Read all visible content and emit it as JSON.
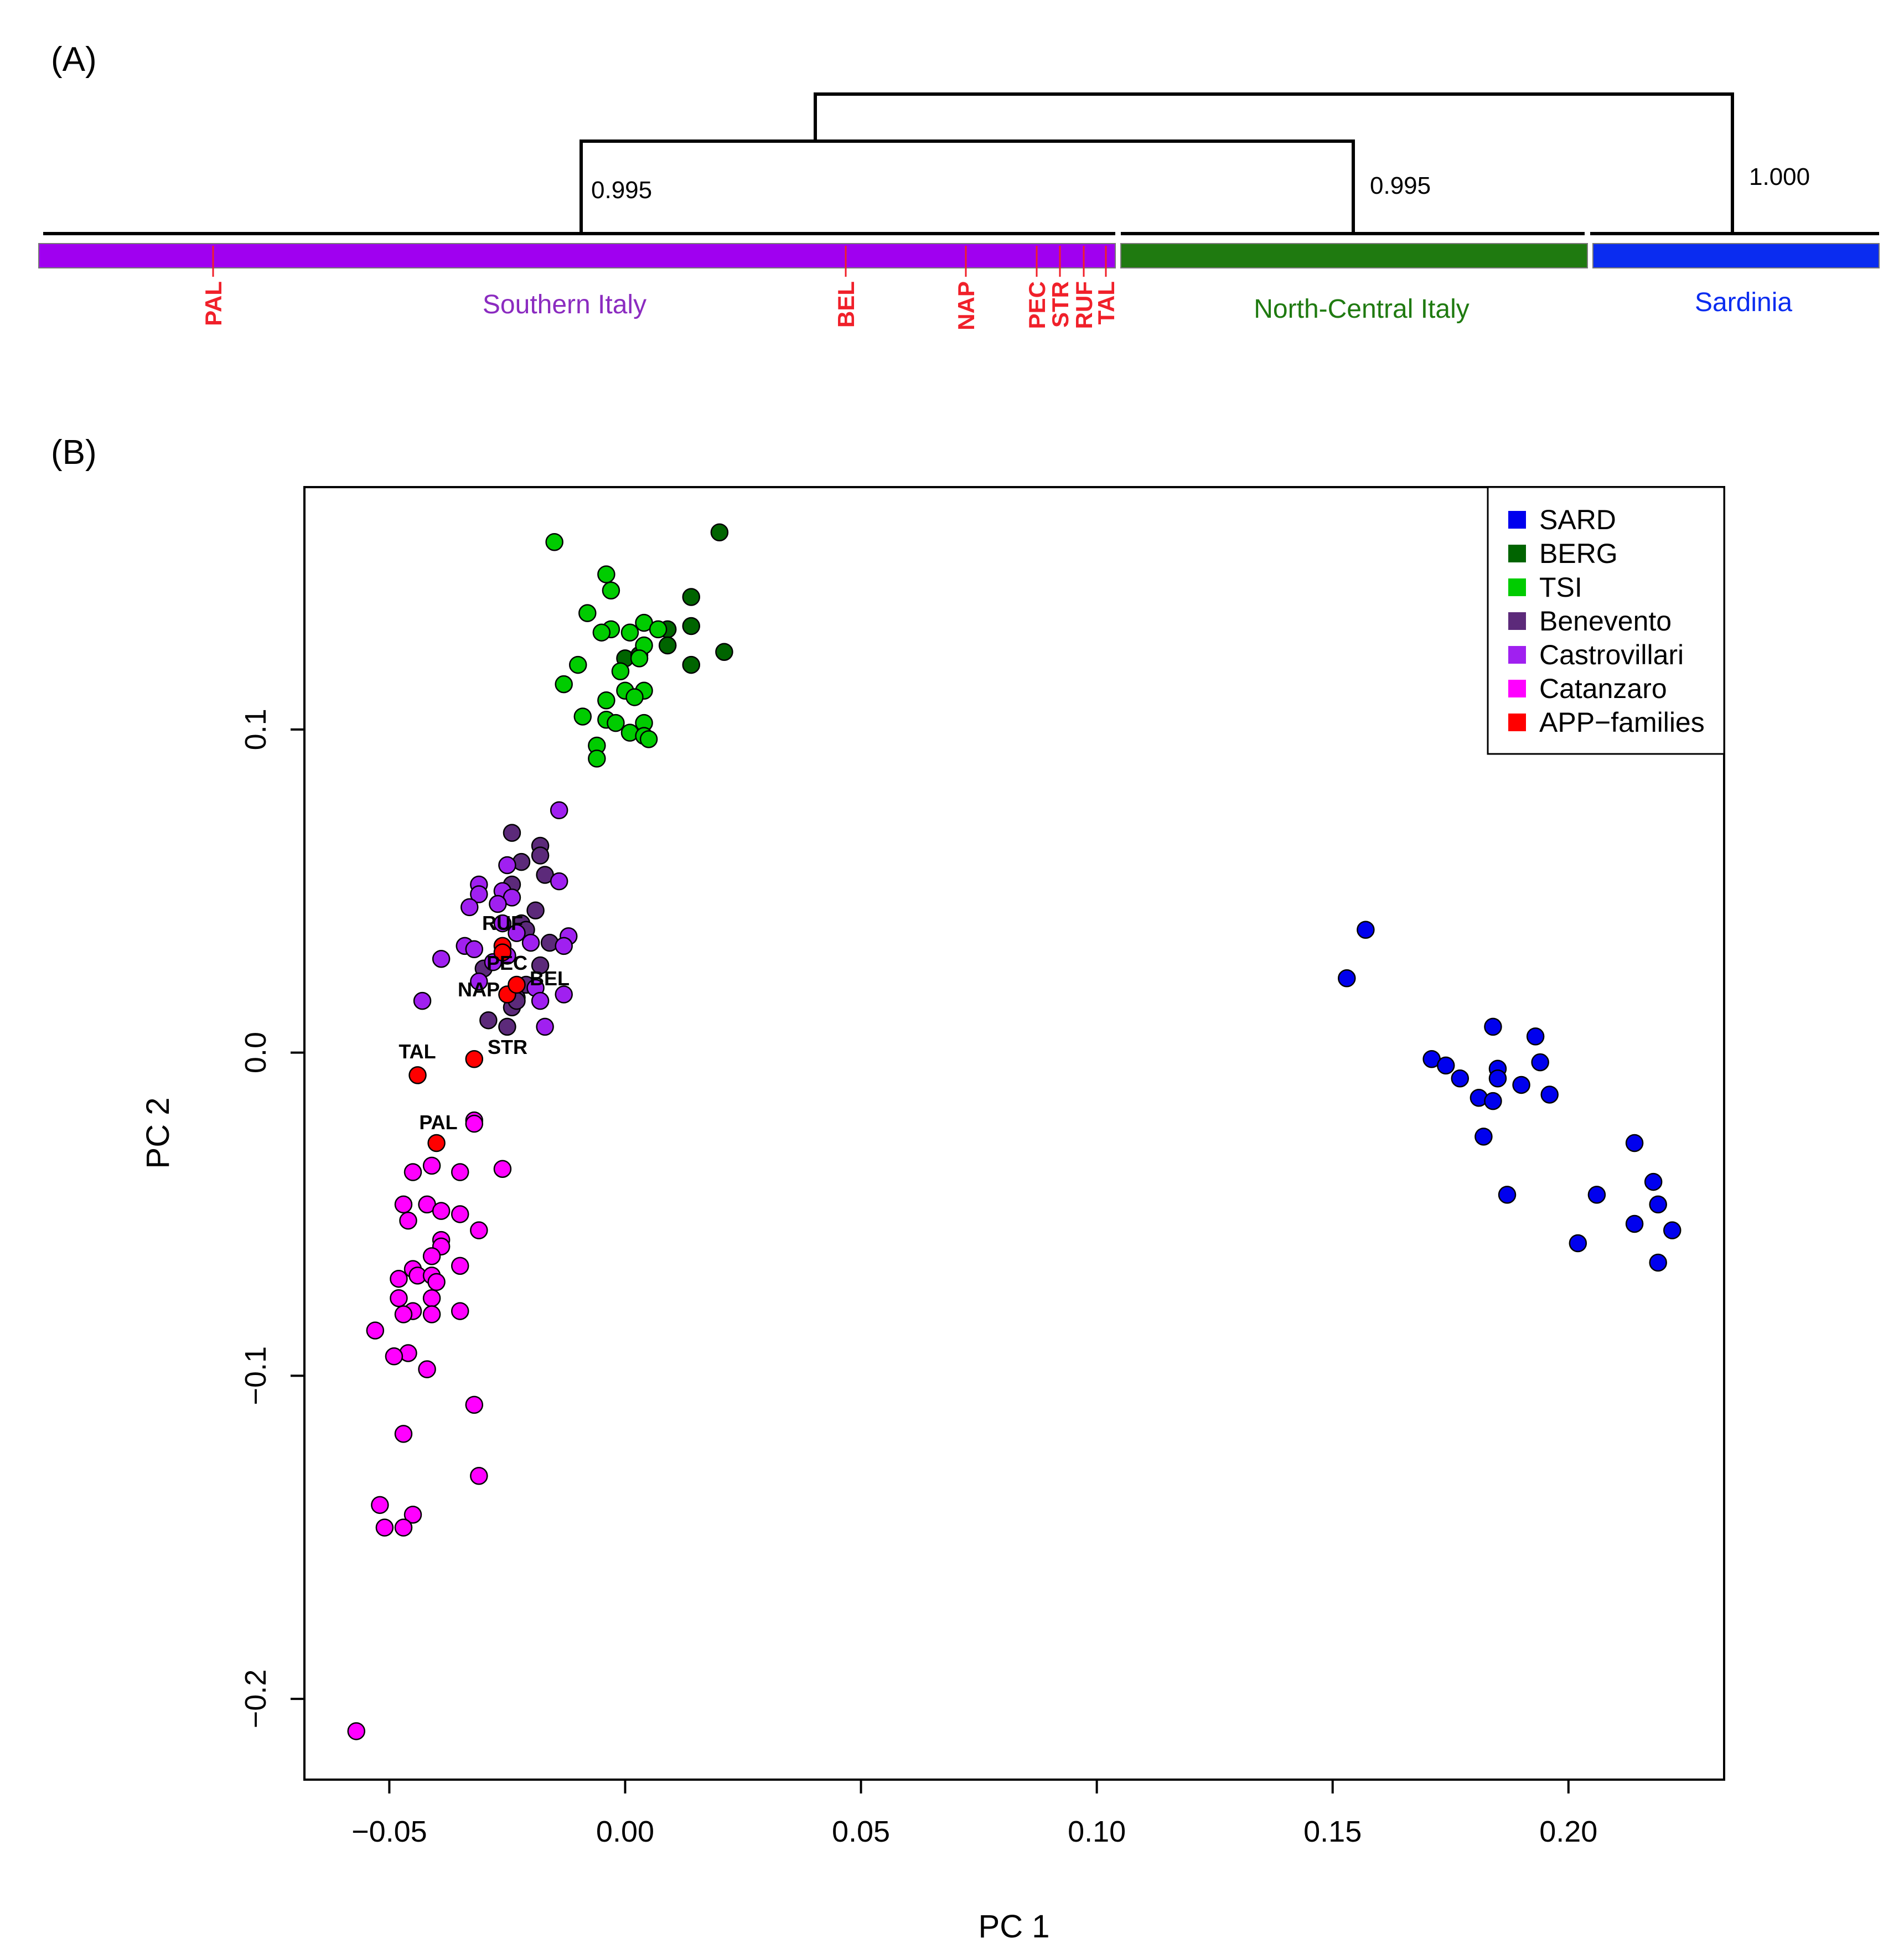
{
  "panel_a": {
    "label": "(A)",
    "support_values": [
      "0.995",
      "0.995",
      "1.000"
    ],
    "regions": [
      {
        "name": "Southern Italy",
        "color": "#A000F0",
        "text_color": "#8B2BC0"
      },
      {
        "name": "North-Central Italy",
        "color": "#1F7A10",
        "text_color": "#1F7A10"
      },
      {
        "name": "Sardinia",
        "color": "#0A2CF0",
        "text_color": "#0A2CF0"
      }
    ],
    "families": [
      "PAL",
      "BEL",
      "NAP",
      "PEC",
      "STR",
      "RUF",
      "TAL"
    ],
    "family_color": "#F0202A"
  },
  "panel_b": {
    "label": "(B)"
  },
  "chart_data": {
    "type": "scatter",
    "xlabel": "PC 1",
    "ylabel": "PC 2",
    "xlim": [
      -0.068,
      0.233
    ],
    "ylim": [
      -0.225,
      0.175
    ],
    "xticks": [
      -0.05,
      0.0,
      0.05,
      0.1,
      0.15,
      0.2
    ],
    "xtick_labels": [
      "−0.05",
      "0.00",
      "0.05",
      "0.10",
      "0.15",
      "0.20"
    ],
    "yticks": [
      -0.2,
      -0.1,
      0.0,
      0.1
    ],
    "ytick_labels": [
      "−0.2",
      "−0.1",
      "0.0",
      "0.1"
    ],
    "legend_position": "top-right",
    "series": [
      {
        "name": "SARD",
        "color": "#0000EE",
        "points": [
          [
            0.157,
            0.038
          ],
          [
            0.153,
            0.023
          ],
          [
            0.184,
            0.008
          ],
          [
            0.193,
            0.005
          ],
          [
            0.171,
            -0.002
          ],
          [
            0.174,
            -0.004
          ],
          [
            0.194,
            -0.003
          ],
          [
            0.185,
            -0.005
          ],
          [
            0.177,
            -0.008
          ],
          [
            0.185,
            -0.008
          ],
          [
            0.19,
            -0.01
          ],
          [
            0.181,
            -0.014
          ],
          [
            0.184,
            -0.015
          ],
          [
            0.196,
            -0.013
          ],
          [
            0.182,
            -0.026
          ],
          [
            0.214,
            -0.028
          ],
          [
            0.218,
            -0.04
          ],
          [
            0.206,
            -0.044
          ],
          [
            0.187,
            -0.044
          ],
          [
            0.219,
            -0.047
          ],
          [
            0.214,
            -0.053
          ],
          [
            0.222,
            -0.055
          ],
          [
            0.202,
            -0.059
          ],
          [
            0.219,
            -0.065
          ]
        ]
      },
      {
        "name": "BERG",
        "color": "#006400",
        "points": [
          [
            0.02,
            0.161
          ],
          [
            0.014,
            0.141
          ],
          [
            0.014,
            0.132
          ],
          [
            0.009,
            0.131
          ],
          [
            0.021,
            0.124
          ],
          [
            0.009,
            0.126
          ],
          [
            0.0,
            0.122
          ],
          [
            0.014,
            0.12
          ],
          [
            0.003,
            0.123
          ]
        ]
      },
      {
        "name": "TSI",
        "color": "#00CC00",
        "points": [
          [
            -0.015,
            0.158
          ],
          [
            -0.004,
            0.148
          ],
          [
            -0.003,
            0.143
          ],
          [
            -0.008,
            0.136
          ],
          [
            -0.003,
            0.131
          ],
          [
            -0.005,
            0.13
          ],
          [
            0.004,
            0.133
          ],
          [
            0.007,
            0.131
          ],
          [
            0.001,
            0.13
          ],
          [
            0.004,
            0.126
          ],
          [
            -0.01,
            0.12
          ],
          [
            0.003,
            0.122
          ],
          [
            -0.001,
            0.118
          ],
          [
            -0.013,
            0.114
          ],
          [
            0.004,
            0.112
          ],
          [
            0.0,
            0.112
          ],
          [
            0.002,
            0.11
          ],
          [
            -0.004,
            0.109
          ],
          [
            -0.009,
            0.104
          ],
          [
            -0.004,
            0.103
          ],
          [
            0.004,
            0.102
          ],
          [
            -0.002,
            0.102
          ],
          [
            0.001,
            0.099
          ],
          [
            0.004,
            0.098
          ],
          [
            0.005,
            0.097
          ],
          [
            -0.006,
            0.095
          ],
          [
            -0.006,
            0.091
          ]
        ]
      },
      {
        "name": "Benevento",
        "color": "#5C2A7A",
        "points": [
          [
            -0.024,
            0.068
          ],
          [
            -0.018,
            0.064
          ],
          [
            -0.018,
            0.061
          ],
          [
            -0.022,
            0.059
          ],
          [
            -0.017,
            0.055
          ],
          [
            -0.024,
            0.052
          ],
          [
            -0.019,
            0.044
          ],
          [
            -0.022,
            0.04
          ],
          [
            -0.021,
            0.038
          ],
          [
            -0.016,
            0.034
          ],
          [
            -0.018,
            0.027
          ],
          [
            -0.03,
            0.026
          ],
          [
            -0.021,
            0.021
          ],
          [
            -0.023,
            0.017
          ],
          [
            -0.024,
            0.014
          ],
          [
            -0.023,
            0.016
          ],
          [
            -0.029,
            0.01
          ],
          [
            -0.025,
            0.008
          ]
        ]
      },
      {
        "name": "Castrovillari",
        "color": "#A020F0",
        "points": [
          [
            -0.014,
            0.075
          ],
          [
            -0.025,
            0.058
          ],
          [
            -0.031,
            0.052
          ],
          [
            -0.014,
            0.053
          ],
          [
            -0.026,
            0.05
          ],
          [
            -0.031,
            0.049
          ],
          [
            -0.024,
            0.048
          ],
          [
            -0.027,
            0.046
          ],
          [
            -0.033,
            0.045
          ],
          [
            -0.026,
            0.04
          ],
          [
            -0.023,
            0.037
          ],
          [
            -0.012,
            0.036
          ],
          [
            -0.02,
            0.034
          ],
          [
            -0.034,
            0.033
          ],
          [
            -0.013,
            0.033
          ],
          [
            -0.032,
            0.032
          ],
          [
            -0.025,
            0.03
          ],
          [
            -0.039,
            0.029
          ],
          [
            -0.028,
            0.028
          ],
          [
            -0.031,
            0.022
          ],
          [
            -0.019,
            0.02
          ],
          [
            -0.013,
            0.018
          ],
          [
            -0.043,
            0.016
          ],
          [
            -0.018,
            0.016
          ],
          [
            -0.017,
            0.008
          ]
        ]
      },
      {
        "name": "Catanzaro",
        "color": "#FF00FF",
        "points": [
          [
            -0.032,
            -0.021
          ],
          [
            -0.032,
            -0.022
          ],
          [
            -0.041,
            -0.035
          ],
          [
            -0.026,
            -0.036
          ],
          [
            -0.045,
            -0.037
          ],
          [
            -0.035,
            -0.037
          ],
          [
            -0.047,
            -0.047
          ],
          [
            -0.042,
            -0.047
          ],
          [
            -0.039,
            -0.049
          ],
          [
            -0.035,
            -0.05
          ],
          [
            -0.046,
            -0.052
          ],
          [
            -0.031,
            -0.055
          ],
          [
            -0.039,
            -0.058
          ],
          [
            -0.039,
            -0.06
          ],
          [
            -0.041,
            -0.063
          ],
          [
            -0.035,
            -0.066
          ],
          [
            -0.045,
            -0.067
          ],
          [
            -0.044,
            -0.069
          ],
          [
            -0.041,
            -0.069
          ],
          [
            -0.048,
            -0.07
          ],
          [
            -0.04,
            -0.071
          ],
          [
            -0.048,
            -0.076
          ],
          [
            -0.041,
            -0.076
          ],
          [
            -0.045,
            -0.08
          ],
          [
            -0.047,
            -0.081
          ],
          [
            -0.041,
            -0.081
          ],
          [
            -0.035,
            -0.08
          ],
          [
            -0.053,
            -0.086
          ],
          [
            -0.046,
            -0.093
          ],
          [
            -0.049,
            -0.094
          ],
          [
            -0.042,
            -0.098
          ],
          [
            -0.032,
            -0.109
          ],
          [
            -0.047,
            -0.118
          ],
          [
            -0.031,
            -0.131
          ],
          [
            -0.052,
            -0.14
          ],
          [
            -0.045,
            -0.143
          ],
          [
            -0.051,
            -0.147
          ],
          [
            -0.047,
            -0.147
          ],
          [
            -0.057,
            -0.21
          ]
        ]
      },
      {
        "name": "APP−families",
        "color": "#FF0000",
        "points": [
          [
            -0.026,
            0.033
          ],
          [
            -0.026,
            0.031
          ],
          [
            -0.025,
            0.018
          ],
          [
            -0.023,
            0.021
          ],
          [
            -0.044,
            -0.007
          ],
          [
            -0.032,
            -0.002
          ],
          [
            -0.04,
            -0.028
          ]
        ],
        "labels": [
          "RUF",
          "",
          "PEC",
          "BEL",
          "TAL",
          "STR",
          "PAL"
        ]
      }
    ],
    "point_labels": [
      {
        "text": "RUF"
      },
      {
        "text": "PEC"
      },
      {
        "text": "NAP"
      },
      {
        "text": "BEL"
      },
      {
        "text": "TAL"
      },
      {
        "text": "STR"
      },
      {
        "text": "PAL"
      }
    ]
  }
}
